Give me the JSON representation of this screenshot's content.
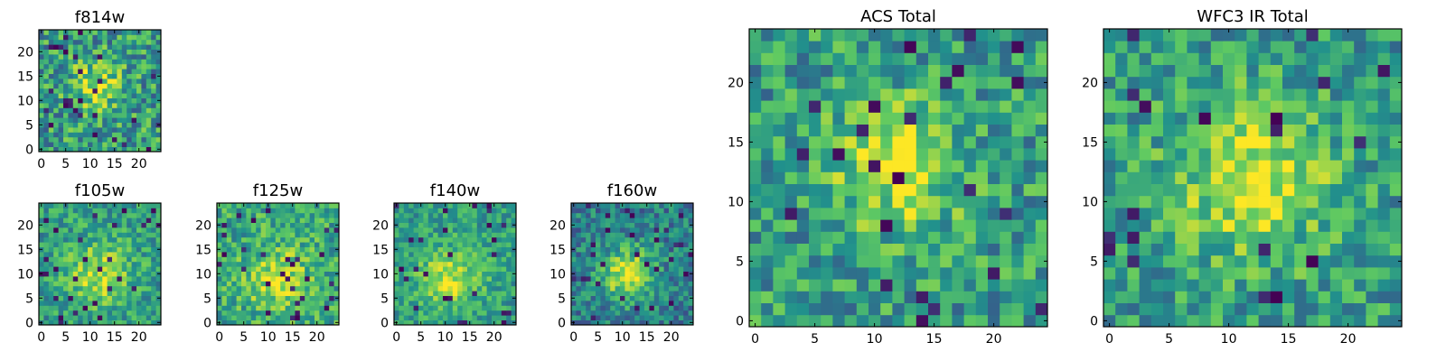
{
  "figure": {
    "colormap": "viridis",
    "colormap_stops": [
      "#440154",
      "#3b528b",
      "#21918c",
      "#5ec962",
      "#fde725"
    ],
    "frame_color": "#000000",
    "background": "#ffffff"
  },
  "chart_data": [
    {
      "type": "heatmap",
      "title": "f814w",
      "grid_size": 25,
      "xlim": [
        -0.5,
        24.5
      ],
      "ylim": [
        -0.5,
        24.5
      ],
      "xticks": [
        0,
        5,
        10,
        15,
        20
      ],
      "yticks": [
        0,
        5,
        10,
        15,
        20
      ],
      "center": [
        11,
        13
      ],
      "peak_width": 3.5,
      "noise": 0.28,
      "background_level": 0.55,
      "peak_level": 0.35,
      "seed": 11
    },
    {
      "type": "heatmap",
      "title": "f105w",
      "grid_size": 25,
      "xlim": [
        -0.5,
        24.5
      ],
      "ylim": [
        -0.5,
        24.5
      ],
      "xticks": [
        0,
        5,
        10,
        15,
        20
      ],
      "yticks": [
        0,
        5,
        10,
        15,
        20
      ],
      "center": [
        12,
        10
      ],
      "peak_width": 4.5,
      "noise": 0.2,
      "background_level": 0.55,
      "peak_level": 0.35,
      "seed": 23
    },
    {
      "type": "heatmap",
      "title": "f125w",
      "grid_size": 25,
      "xlim": [
        -0.5,
        24.5
      ],
      "ylim": [
        -0.5,
        24.5
      ],
      "xticks": [
        0,
        5,
        10,
        15,
        20
      ],
      "yticks": [
        0,
        5,
        10,
        15,
        20
      ],
      "center": [
        12,
        9
      ],
      "peak_width": 4.5,
      "noise": 0.22,
      "background_level": 0.6,
      "peak_level": 0.3,
      "seed": 37
    },
    {
      "type": "heatmap",
      "title": "f140w",
      "grid_size": 25,
      "xlim": [
        -0.5,
        24.5
      ],
      "ylim": [
        -0.5,
        24.5
      ],
      "xticks": [
        0,
        5,
        10,
        15,
        20
      ],
      "yticks": [
        0,
        5,
        10,
        15,
        20
      ],
      "center": [
        11,
        9
      ],
      "peak_width": 4.5,
      "noise": 0.18,
      "background_level": 0.55,
      "peak_level": 0.35,
      "seed": 41
    },
    {
      "type": "heatmap",
      "title": "f160w",
      "grid_size": 25,
      "xlim": [
        -0.5,
        24.5
      ],
      "ylim": [
        -0.5,
        24.5
      ],
      "xticks": [
        0,
        5,
        10,
        15,
        20
      ],
      "yticks": [
        0,
        5,
        10,
        15,
        20
      ],
      "center": [
        11,
        10
      ],
      "peak_width": 4,
      "noise": 0.2,
      "background_level": 0.42,
      "peak_level": 0.5,
      "seed": 53
    },
    {
      "type": "heatmap",
      "title": "ACS Total",
      "grid_size": 25,
      "xlim": [
        -0.5,
        24.5
      ],
      "ylim": [
        -0.5,
        24.5
      ],
      "xticks": [
        0,
        5,
        10,
        15,
        20
      ],
      "yticks": [
        0,
        5,
        10,
        15,
        20
      ],
      "center": [
        12,
        13
      ],
      "peak_width": 3.8,
      "noise": 0.24,
      "background_level": 0.55,
      "peak_level": 0.38,
      "seed": 67
    },
    {
      "type": "heatmap",
      "title": "WFC3 IR Total",
      "grid_size": 25,
      "xlim": [
        -0.5,
        24.5
      ],
      "ylim": [
        -0.5,
        24.5
      ],
      "xticks": [
        0,
        5,
        10,
        15,
        20
      ],
      "yticks": [
        0,
        5,
        10,
        15,
        20
      ],
      "center": [
        12,
        12
      ],
      "peak_width": 4.5,
      "noise": 0.22,
      "background_level": 0.55,
      "peak_level": 0.38,
      "seed": 79
    }
  ]
}
